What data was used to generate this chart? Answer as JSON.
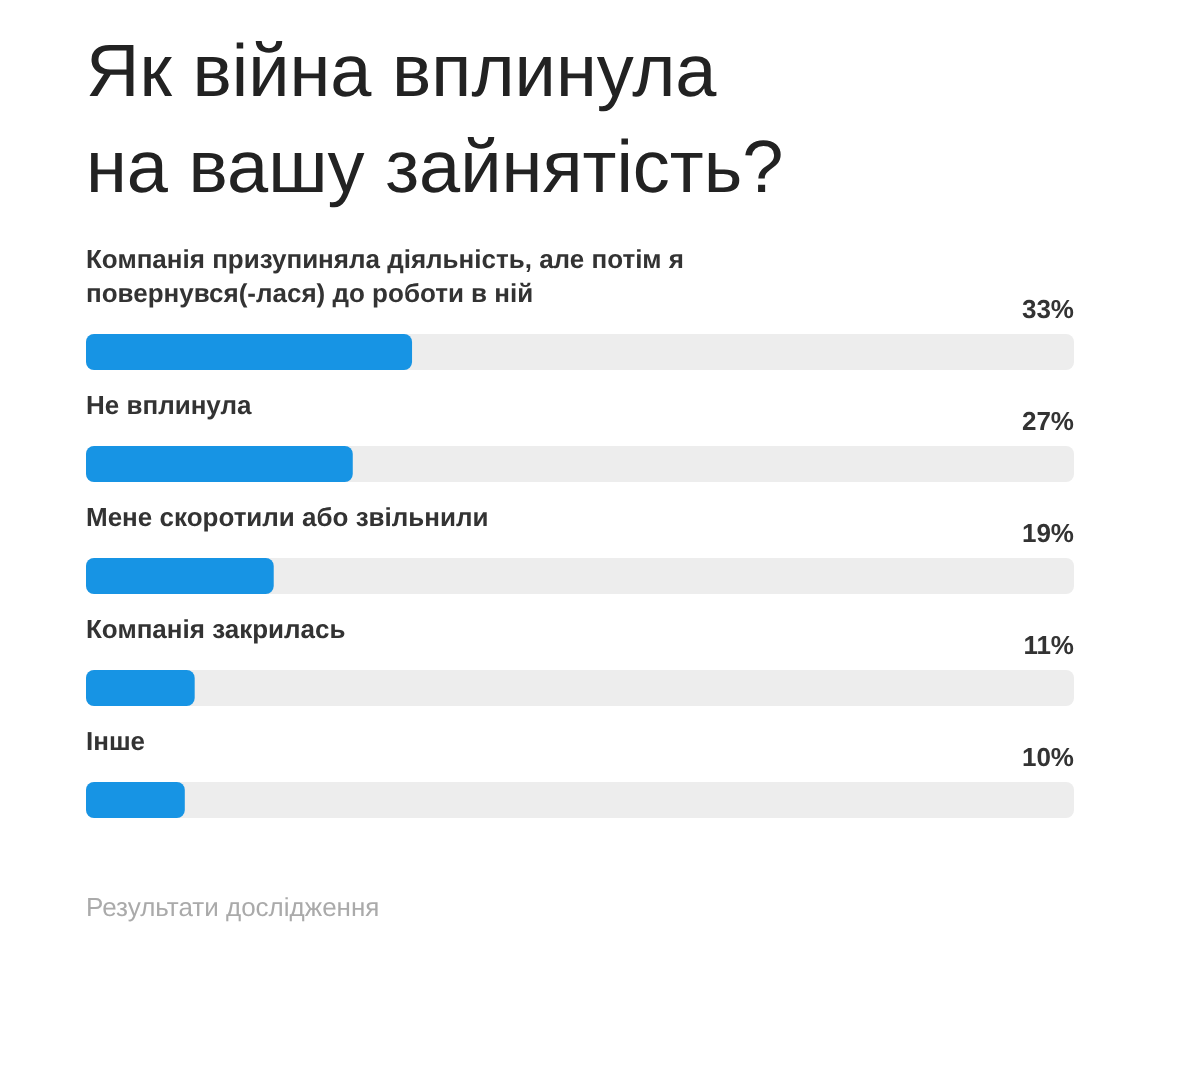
{
  "chart_data": {
    "type": "bar",
    "orientation": "horizontal",
    "title": "Як війна вплинула на вашу зайнятість?",
    "categories": [
      "Компанія призупиняла діяльність, але потім я повернувся(-лася) до роботи в ній",
      "Не вплинула",
      "Мене скоротили або звільнили",
      "Компанія закрилась",
      "Інше"
    ],
    "values": [
      33,
      27,
      19,
      11,
      10
    ],
    "color": "#1794e4",
    "xlim": [
      0,
      100
    ],
    "tick_labels": "y",
    "data_labels": true,
    "value_labels": [
      "33%",
      "27%",
      "19%",
      "11%",
      "10%"
    ],
    "annotations": [
      "Результати дослідження"
    ]
  }
}
